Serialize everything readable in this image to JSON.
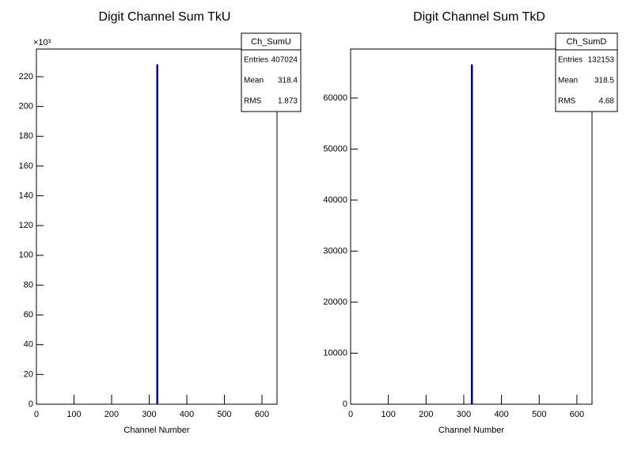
{
  "chart_data": [
    {
      "type": "histogram",
      "title": "Digit Channel Sum TkU",
      "x_label": "Channel Number",
      "y_exponent": "×10³",
      "bins": [
        320,
        321
      ],
      "values": [
        228
      ],
      "color": "#000080",
      "xlim": [
        0,
        640
      ],
      "xticks": [
        0,
        100,
        200,
        300,
        400,
        500,
        600
      ],
      "ylim": [
        0,
        238.6
      ],
      "yticks": [
        0,
        20,
        40,
        60,
        80,
        100,
        120,
        140,
        160,
        180,
        200,
        220
      ],
      "stats": {
        "title": "Ch_SumU",
        "rows": [
          [
            "Entries",
            407024
          ],
          [
            "Mean",
            318.4
          ],
          [
            "RMS",
            1.873
          ]
        ]
      }
    },
    {
      "type": "histogram",
      "title": "Digit Channel Sum TkD",
      "x_label": "Channel Number",
      "bins": [
        320,
        321
      ],
      "values": [
        66500
      ],
      "color": "#000080",
      "xlim": [
        0,
        640
      ],
      "xticks": [
        0,
        100,
        200,
        300,
        400,
        500,
        600
      ],
      "ylim": [
        0,
        69600
      ],
      "yticks": [
        0,
        10000,
        20000,
        30000,
        40000,
        50000,
        60000
      ],
      "stats": {
        "title": "Ch_SumD",
        "rows": [
          [
            "Entries",
            132153
          ],
          [
            "Mean",
            318.5
          ],
          [
            "RMS",
            4.68
          ]
        ]
      }
    }
  ]
}
